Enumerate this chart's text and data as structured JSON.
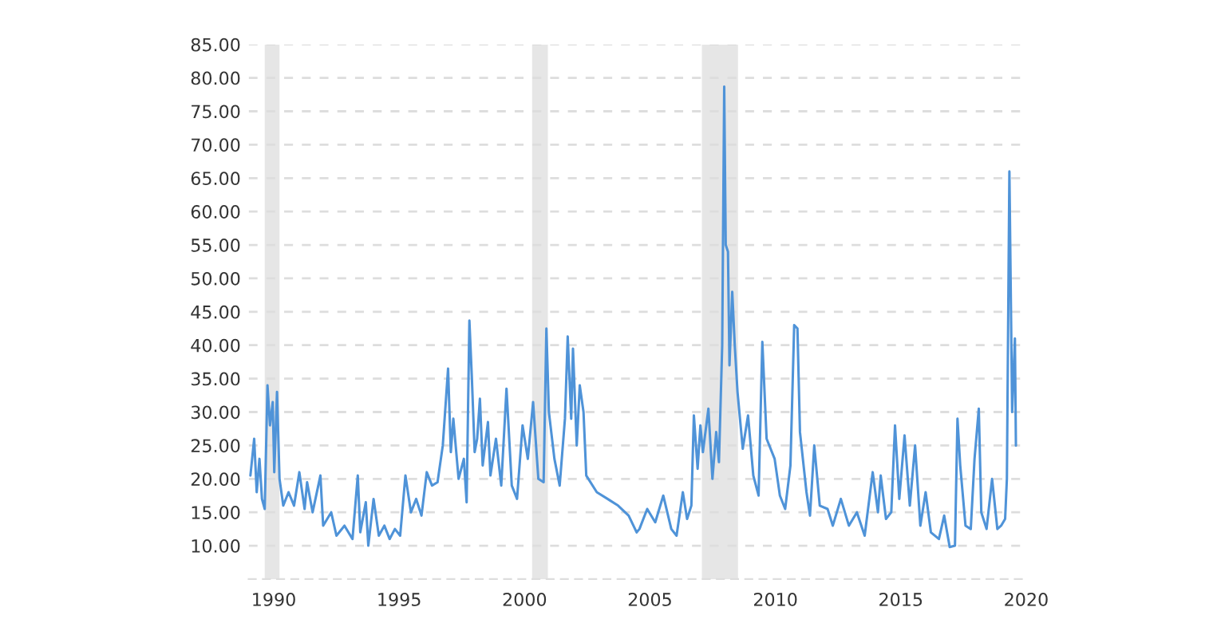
{
  "chart_data": {
    "type": "line",
    "xlim": [
      1989.0,
      2020.0
    ],
    "xticks": [
      1990,
      1995,
      2000,
      2005,
      2010,
      2015,
      2020
    ],
    "ylim": [
      5,
      85
    ],
    "yticks": [
      {
        "value": 10,
        "label": "10.00"
      },
      {
        "value": 15,
        "label": "15.00"
      },
      {
        "value": 20,
        "label": "20.00"
      },
      {
        "value": 25,
        "label": "25.00"
      },
      {
        "value": 30,
        "label": "30.00"
      },
      {
        "value": 35,
        "label": "35.00"
      },
      {
        "value": 40,
        "label": "40.00"
      },
      {
        "value": 45,
        "label": "45.00"
      },
      {
        "value": 50,
        "label": "50.00"
      },
      {
        "value": 55,
        "label": "55.00"
      },
      {
        "value": 60,
        "label": "60.00"
      },
      {
        "value": 65,
        "label": "65.00"
      },
      {
        "value": 70,
        "label": "70.00"
      },
      {
        "value": 75,
        "label": "75.00"
      },
      {
        "value": 80,
        "label": "80.00"
      },
      {
        "value": 85,
        "label": "85.00"
      }
    ],
    "grid": "y",
    "marker": "none",
    "line_style": "solid",
    "bands": [
      {
        "axis": "x",
        "from": 1989.64,
        "to": 1990.23,
        "color": "#e6e6e6"
      },
      {
        "axis": "x",
        "from": 2000.3,
        "to": 2000.93,
        "color": "#e6e6e6"
      },
      {
        "axis": "x",
        "from": 2007.07,
        "to": 2008.51,
        "color": "#e6e6e6"
      }
    ],
    "series": [
      {
        "color": "#4f93d8",
        "x": [
          1989.07,
          1989.22,
          1989.32,
          1989.43,
          1989.53,
          1989.64,
          1989.75,
          1989.85,
          1989.96,
          1990.02,
          1990.13,
          1990.23,
          1990.38,
          1990.59,
          1990.81,
          1991.02,
          1991.23,
          1991.33,
          1991.55,
          1991.86,
          1991.97,
          1992.29,
          1992.5,
          1992.82,
          1993.14,
          1993.35,
          1993.45,
          1993.67,
          1993.77,
          1993.98,
          1994.19,
          1994.41,
          1994.62,
          1994.83,
          1995.04,
          1995.25,
          1995.47,
          1995.68,
          1995.89,
          1996.1,
          1996.31,
          1996.53,
          1996.74,
          1996.95,
          1997.06,
          1997.16,
          1997.37,
          1997.58,
          1997.69,
          1997.8,
          1997.9,
          1998.01,
          1998.11,
          1998.22,
          1998.33,
          1998.54,
          1998.64,
          1998.86,
          1999.07,
          1999.28,
          1999.49,
          1999.7,
          1999.92,
          2000.13,
          2000.34,
          2000.55,
          2000.76,
          2000.87,
          2000.97,
          2001.19,
          2001.4,
          2001.61,
          2001.72,
          2001.86,
          2001.93,
          2002.08,
          2002.2,
          2002.35,
          2002.46,
          2002.88,
          2003.31,
          2003.73,
          2004.15,
          2004.47,
          2004.58,
          2004.89,
          2005.21,
          2005.53,
          2005.85,
          2006.06,
          2006.31,
          2006.48,
          2006.65,
          2006.75,
          2006.9,
          2007.01,
          2007.11,
          2007.33,
          2007.49,
          2007.64,
          2007.75,
          2007.88,
          2007.96,
          2008.02,
          2008.11,
          2008.17,
          2008.28,
          2008.38,
          2008.49,
          2008.7,
          2008.91,
          2009.12,
          2009.33,
          2009.48,
          2009.65,
          2009.97,
          2010.18,
          2010.39,
          2010.6,
          2010.75,
          2010.88,
          2010.98,
          2011.24,
          2011.38,
          2011.55,
          2011.77,
          2012.08,
          2012.29,
          2012.61,
          2012.93,
          2013.25,
          2013.56,
          2013.88,
          2014.09,
          2014.2,
          2014.41,
          2014.62,
          2014.77,
          2014.94,
          2015.15,
          2015.36,
          2015.57,
          2015.78,
          2015.99,
          2016.2,
          2016.52,
          2016.73,
          2016.95,
          2017.16,
          2017.26,
          2017.37,
          2017.58,
          2017.79,
          2017.94,
          2018.11,
          2018.21,
          2018.42,
          2018.64,
          2018.85,
          2019.0,
          2019.16,
          2019.23,
          2019.33,
          2019.44,
          2019.55,
          2019.59
        ],
        "values": [
          20.5,
          26,
          18,
          23,
          17,
          15.5,
          34,
          28,
          31.5,
          21,
          33,
          20,
          16,
          18,
          16,
          21,
          15.5,
          19.5,
          15,
          20.5,
          13,
          15,
          11.5,
          13,
          11,
          20.5,
          12,
          16.5,
          10,
          17,
          11.5,
          13,
          11,
          12.5,
          11.5,
          20.5,
          15,
          17,
          14.5,
          21,
          19,
          19.5,
          25,
          36.5,
          24,
          29,
          20,
          23,
          16.5,
          43.7,
          35,
          24,
          26,
          32,
          22,
          28.5,
          20.5,
          26,
          19,
          33.5,
          19,
          17,
          28,
          23,
          31.5,
          20,
          19.5,
          42.5,
          30,
          23,
          19,
          29,
          41.3,
          29,
          39.5,
          25,
          34,
          30,
          20.5,
          18,
          17,
          16,
          14.5,
          12,
          12.5,
          15.5,
          13.5,
          17.5,
          12.5,
          11.5,
          18,
          14,
          16,
          29.5,
          21.5,
          28,
          24,
          30.5,
          20,
          27,
          22.5,
          40,
          78.7,
          55,
          54,
          37,
          48,
          40,
          33,
          24.5,
          29.5,
          20.5,
          17.5,
          40.5,
          26,
          23,
          17.5,
          15.5,
          22,
          43,
          42.5,
          27,
          18,
          14.5,
          25,
          16,
          15.5,
          13,
          17,
          13,
          15,
          11.5,
          21,
          15,
          20.5,
          14,
          15,
          28,
          17,
          26.5,
          16,
          25,
          13,
          18,
          12,
          11,
          14.5,
          9.8,
          10,
          29,
          22,
          13,
          12.5,
          23,
          30.5,
          15,
          12.5,
          20,
          12.5,
          13,
          14,
          20,
          66,
          30,
          41,
          25
        ]
      }
    ]
  }
}
